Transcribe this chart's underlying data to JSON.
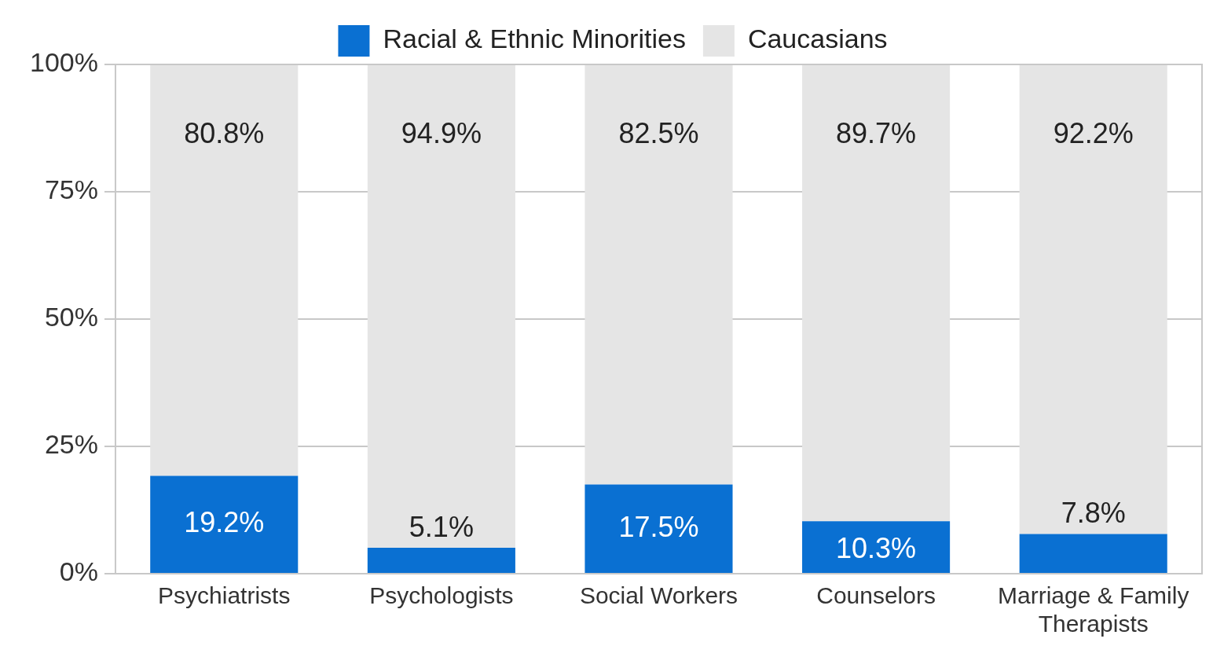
{
  "chart_data": {
    "type": "bar",
    "stacked": true,
    "categories": [
      "Psychiatrists",
      "Psychologists",
      "Social Workers",
      "Counselors",
      "Marriage & Family Therapists"
    ],
    "series": [
      {
        "name": "Racial & Ethnic Minorities",
        "color": "#0a70d2",
        "values": [
          19.2,
          5.1,
          17.5,
          10.3,
          7.8
        ],
        "value_labels": [
          "19.2%",
          "5.1%",
          "17.5%",
          "10.3%",
          "7.8%"
        ]
      },
      {
        "name": "Caucasians",
        "color": "#e5e5e5",
        "values": [
          80.8,
          94.9,
          82.5,
          89.7,
          92.2
        ],
        "value_labels": [
          "80.8%",
          "94.9%",
          "82.5%",
          "89.7%",
          "92.2%"
        ]
      }
    ],
    "ylim": [
      0,
      100
    ],
    "yticks": [
      {
        "value": 0,
        "label": "0%"
      },
      {
        "value": 25,
        "label": "25%"
      },
      {
        "value": 50,
        "label": "50%"
      },
      {
        "value": 75,
        "label": "75%"
      },
      {
        "value": 100,
        "label": "100%"
      }
    ],
    "grid": "y",
    "legend": "top"
  }
}
